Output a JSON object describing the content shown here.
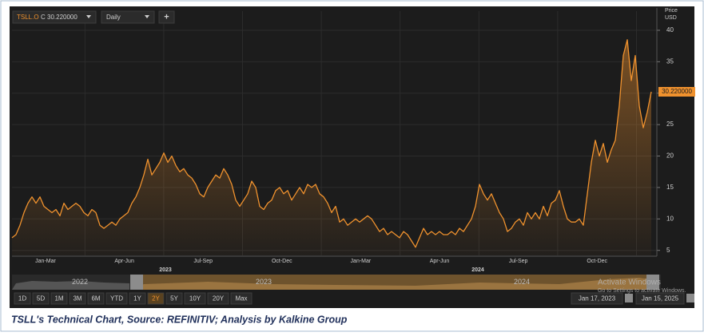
{
  "chart_data": {
    "type": "line",
    "symbol": "TSLL.O",
    "close_label": "C 30.220000",
    "interval": "Daily",
    "add_button": "+",
    "axis_title": "Price",
    "currency": "USD",
    "last_value_label": "30.220000",
    "color": "#f0922e",
    "grid": true,
    "ylim": [
      4.2,
      40.5
    ],
    "yticks": [
      5,
      10,
      15,
      20,
      25,
      30,
      35,
      40
    ],
    "x_labels": [
      "Jan-Mar",
      "Apr-Jun",
      "Jul-Sep",
      "Oct-Dec",
      "Jan-Mar",
      "Apr-Jun",
      "Jul-Sep",
      "Oct-Dec"
    ],
    "years": [
      "2023",
      "2024"
    ],
    "navigator_years": [
      "2022",
      "2023",
      "2024"
    ],
    "range_buttons": [
      "1D",
      "5D",
      "1M",
      "3M",
      "6M",
      "YTD",
      "1Y",
      "2Y",
      "5Y",
      "10Y",
      "20Y",
      "Max"
    ],
    "active_range": "2Y",
    "start_date": "Jan 17, 2023",
    "end_date": "Jan 15, 2025",
    "watermark": "Activate Windows",
    "watermark_sub": "Go to Settings to activate Windows.",
    "values": [
      7,
      7.5,
      9,
      11,
      12.5,
      13.5,
      12.5,
      13.5,
      12,
      11.5,
      11,
      11.5,
      10.5,
      12.5,
      11.5,
      12,
      12.5,
      12,
      11,
      10.5,
      11.5,
      11,
      9,
      8.5,
      9,
      9.5,
      9,
      10,
      10.5,
      11,
      12.5,
      13.5,
      15,
      17,
      19.5,
      17,
      18,
      19,
      20.5,
      19,
      20,
      18.5,
      17.5,
      18,
      17,
      16.5,
      15.5,
      14,
      13.5,
      15,
      16,
      17,
      16.5,
      18,
      17,
      15.5,
      13,
      12,
      13,
      14,
      16,
      15,
      12,
      11.5,
      12.5,
      13,
      14.5,
      15,
      14,
      14.5,
      13,
      14,
      15,
      14,
      15.5,
      15,
      15.5,
      14,
      13.5,
      12.5,
      11,
      12,
      9.5,
      10,
      9,
      9.5,
      10,
      9.5,
      10,
      10.5,
      10,
      9,
      8,
      8.5,
      7.5,
      8,
      7.5,
      7,
      8,
      7.5,
      6.5,
      5.5,
      7,
      8.5,
      7.5,
      8,
      7.5,
      8,
      7.5,
      7.5,
      8,
      7.5,
      8.5,
      8,
      9,
      10,
      12,
      15.5,
      14,
      13,
      14,
      12.5,
      11,
      10,
      8,
      8.5,
      9.5,
      10,
      9,
      11,
      10,
      11,
      10,
      12,
      10.5,
      12.5,
      13,
      14.5,
      12,
      10,
      9.5,
      9.5,
      10,
      9,
      14,
      19,
      22.5,
      20,
      22,
      19,
      21,
      22.5,
      28,
      36,
      38.5,
      32,
      36,
      28,
      24.5,
      27,
      30.22
    ]
  },
  "caption": "TSLL's Technical Chart, Source: REFINITIV; Analysis by Kalkine Group"
}
